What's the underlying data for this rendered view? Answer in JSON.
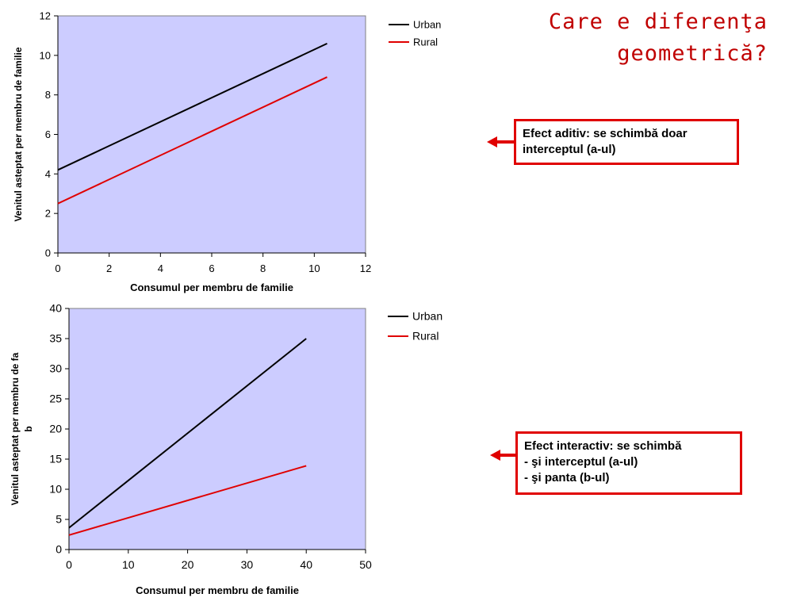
{
  "slide": {
    "title_line1": "Care e diferenţa",
    "title_line2": "geometrică?"
  },
  "callouts": {
    "additive": {
      "line1": "Efect aditiv: se schimbă doar",
      "line2": "interceptul (a-ul)"
    },
    "interactive": {
      "line1": "Efect interactiv: se schimbă",
      "line2": "- şi interceptul (a-ul)",
      "line3": "- şi panta (b-ul)"
    }
  },
  "colors": {
    "plot_background": "#ccccff",
    "urban": "#000000",
    "rural": "#e00000",
    "accent": "#e00000",
    "title": "#c00000"
  },
  "chart_data": [
    {
      "type": "line",
      "xlabel": "Consumul per membru de familie",
      "ylabel": "Venitul asteptat per membru de familie",
      "xlim": [
        0,
        12
      ],
      "ylim": [
        0,
        12
      ],
      "xticks": [
        0,
        2,
        4,
        6,
        8,
        10,
        12
      ],
      "yticks": [
        0,
        2,
        4,
        6,
        8,
        10,
        12
      ],
      "grid": false,
      "legend": "right",
      "series": [
        {
          "name": "Urban",
          "color": "#000000",
          "x": [
            0,
            10.5
          ],
          "y": [
            4.2,
            10.6
          ]
        },
        {
          "name": "Rural",
          "color": "#e00000",
          "x": [
            0,
            10.5
          ],
          "y": [
            2.5,
            8.9
          ]
        }
      ]
    },
    {
      "type": "line",
      "xlabel": "Consumul per membru de familie",
      "ylabel_line1": "Venitul asteptat per membru de fa",
      "ylabel_line2": "b",
      "xlim": [
        0,
        50
      ],
      "ylim": [
        0,
        40
      ],
      "xticks": [
        0,
        10,
        20,
        30,
        40,
        50
      ],
      "yticks": [
        0,
        5,
        10,
        15,
        20,
        25,
        30,
        35,
        40
      ],
      "grid": false,
      "legend": "right",
      "series": [
        {
          "name": "Urban",
          "color": "#000000",
          "x": [
            0,
            40
          ],
          "y": [
            3.6,
            35
          ]
        },
        {
          "name": "Rural",
          "color": "#e00000",
          "x": [
            0,
            40
          ],
          "y": [
            2.4,
            13.9
          ]
        }
      ]
    }
  ]
}
